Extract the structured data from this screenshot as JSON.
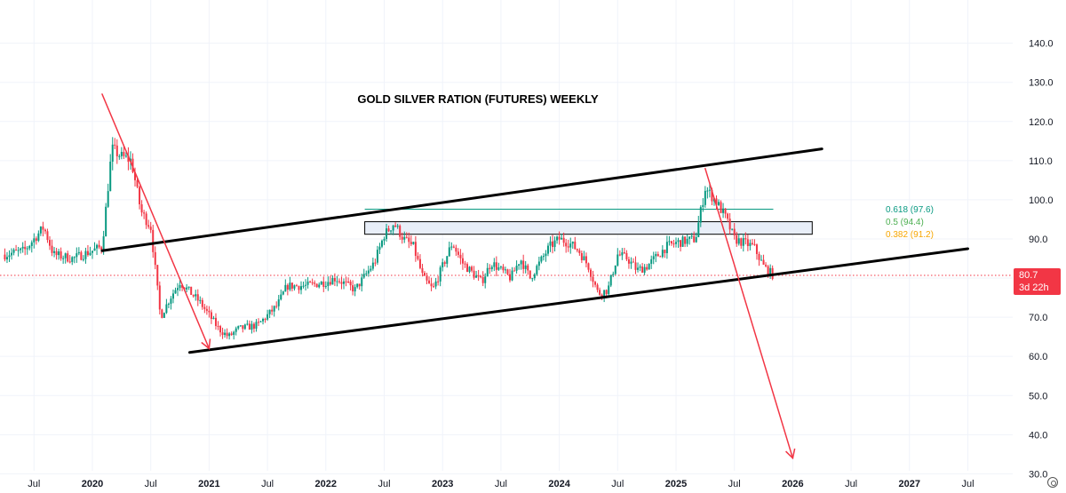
{
  "chart_data": {
    "type": "candlestick",
    "title": "GOLD SILVER RATION (FUTURES) WEEKLY",
    "y_axis": {
      "position": "right",
      "ticks": [
        "140.0",
        "130.0",
        "120.0",
        "110.0",
        "100.0",
        "90.0",
        "80.0",
        "70.0",
        "60.0",
        "50.0",
        "40.0",
        "30.0"
      ],
      "range": [
        28.5,
        146.5
      ]
    },
    "x_axis": {
      "ticks": [
        {
          "label": "Jul",
          "date": "2019-07",
          "year": false
        },
        {
          "label": "2020",
          "date": "2020-01",
          "year": true
        },
        {
          "label": "Jul",
          "date": "2020-07",
          "year": false
        },
        {
          "label": "2021",
          "date": "2021-01",
          "year": true
        },
        {
          "label": "Jul",
          "date": "2021-07",
          "year": false
        },
        {
          "label": "2022",
          "date": "2022-01",
          "year": true
        },
        {
          "label": "Jul",
          "date": "2022-07",
          "year": false
        },
        {
          "label": "2023",
          "date": "2023-01",
          "year": true
        },
        {
          "label": "Jul",
          "date": "2023-07",
          "year": false
        },
        {
          "label": "2024",
          "date": "2024-01",
          "year": true
        },
        {
          "label": "Jul",
          "date": "2024-07",
          "year": false
        },
        {
          "label": "2025",
          "date": "2025-01",
          "year": true
        },
        {
          "label": "Jul",
          "date": "2025-07",
          "year": false
        },
        {
          "label": "2026",
          "date": "2026-01",
          "year": true
        },
        {
          "label": "Jul",
          "date": "2026-07",
          "year": false
        },
        {
          "label": "2027",
          "date": "2027-01",
          "year": true
        },
        {
          "label": "Jul",
          "date": "2027-07",
          "year": false
        }
      ]
    },
    "current_price": {
      "value": "80.7",
      "countdown": "3d 22h"
    },
    "fib_levels": [
      {
        "label": "0.618 (97.6)",
        "value": 97.6,
        "color": "#089981"
      },
      {
        "label": "0.5 (94.4)",
        "value": 94.4,
        "color": "#4caf50"
      },
      {
        "label": "0.382 (91.2)",
        "value": 91.2,
        "color": "#f7a600"
      }
    ],
    "colors": {
      "up": "#089981",
      "down": "#f23645",
      "trendline": "#000000",
      "arrow": "#f23645",
      "fib_box_fill": "#e8eef8",
      "price_line": "#f23645"
    },
    "price_path": [
      [
        "2019-04",
        86
      ],
      [
        "2019-06",
        87
      ],
      [
        "2019-08",
        93
      ],
      [
        "2019-09",
        86
      ],
      [
        "2019-11",
        85
      ],
      [
        "2019-12",
        86
      ],
      [
        "2020-02",
        88
      ],
      [
        "2020-03",
        113
      ],
      [
        "2020-04",
        111
      ],
      [
        "2020-05",
        110
      ],
      [
        "2020-06",
        97
      ],
      [
        "2020-07",
        93
      ],
      [
        "2020-08",
        70
      ],
      [
        "2020-09",
        75
      ],
      [
        "2020-10",
        79
      ],
      [
        "2020-12",
        74
      ],
      [
        "2021-02",
        67
      ],
      [
        "2021-03",
        65
      ],
      [
        "2021-04",
        67
      ],
      [
        "2021-06",
        68
      ],
      [
        "2021-08",
        73
      ],
      [
        "2021-09",
        78
      ],
      [
        "2021-11",
        78
      ],
      [
        "2022-01",
        79
      ],
      [
        "2022-02",
        80
      ],
      [
        "2022-04",
        77
      ],
      [
        "2022-06",
        84
      ],
      [
        "2022-07",
        91
      ],
      [
        "2022-08",
        94
      ],
      [
        "2022-09",
        90
      ],
      [
        "2022-10",
        88
      ],
      [
        "2022-11",
        80
      ],
      [
        "2022-12",
        77
      ],
      [
        "2023-02",
        89
      ],
      [
        "2023-03",
        84
      ],
      [
        "2023-05",
        79
      ],
      [
        "2023-06",
        84
      ],
      [
        "2023-08",
        80
      ],
      [
        "2023-09",
        85
      ],
      [
        "2023-10",
        80
      ],
      [
        "2023-12",
        88
      ],
      [
        "2024-01",
        90
      ],
      [
        "2024-02",
        89
      ],
      [
        "2024-03",
        87
      ],
      [
        "2024-04",
        83
      ],
      [
        "2024-05",
        76
      ],
      [
        "2024-06",
        77
      ],
      [
        "2024-07",
        86
      ],
      [
        "2024-08",
        85
      ],
      [
        "2024-09",
        82
      ],
      [
        "2024-10",
        83
      ],
      [
        "2024-12",
        88
      ],
      [
        "2025-01",
        89
      ],
      [
        "2025-03",
        90
      ],
      [
        "2025-04",
        103
      ],
      [
        "2025-05",
        100
      ],
      [
        "2025-06",
        96
      ],
      [
        "2025-07",
        90
      ],
      [
        "2025-08",
        89
      ],
      [
        "2025-09",
        88
      ],
      [
        "2025-10",
        83
      ],
      [
        "2025-11",
        80.7
      ]
    ],
    "trendlines": [
      {
        "name": "channel-upper",
        "color": "#000000",
        "points": [
          [
            "2020-02",
            87
          ],
          [
            "2025-03",
            108
          ],
          [
            "2026-04",
            113
          ]
        ]
      },
      {
        "name": "channel-lower",
        "color": "#000000",
        "points": [
          [
            "2020-11",
            61
          ],
          [
            "2025-11",
            80.6
          ],
          [
            "2027-07",
            87.5
          ]
        ]
      },
      {
        "name": "downtrend-2020",
        "color": "#f23645",
        "points": [
          [
            "2020-02",
            127
          ],
          [
            "2021-01",
            62
          ]
        ],
        "arrow": true
      },
      {
        "name": "downtrend-2025",
        "color": "#f23645",
        "points": [
          [
            "2025-04",
            108
          ],
          [
            "2026-01",
            34
          ]
        ],
        "arrow": true
      }
    ],
    "horizontal_lines": [
      {
        "name": "fib-0618",
        "value": 97.6,
        "from": "2022-05",
        "to": "2025-11"
      }
    ],
    "fib_box": {
      "from": "2022-05",
      "to": "2026-03",
      "top": 94.4,
      "bottom": 91.2
    }
  }
}
